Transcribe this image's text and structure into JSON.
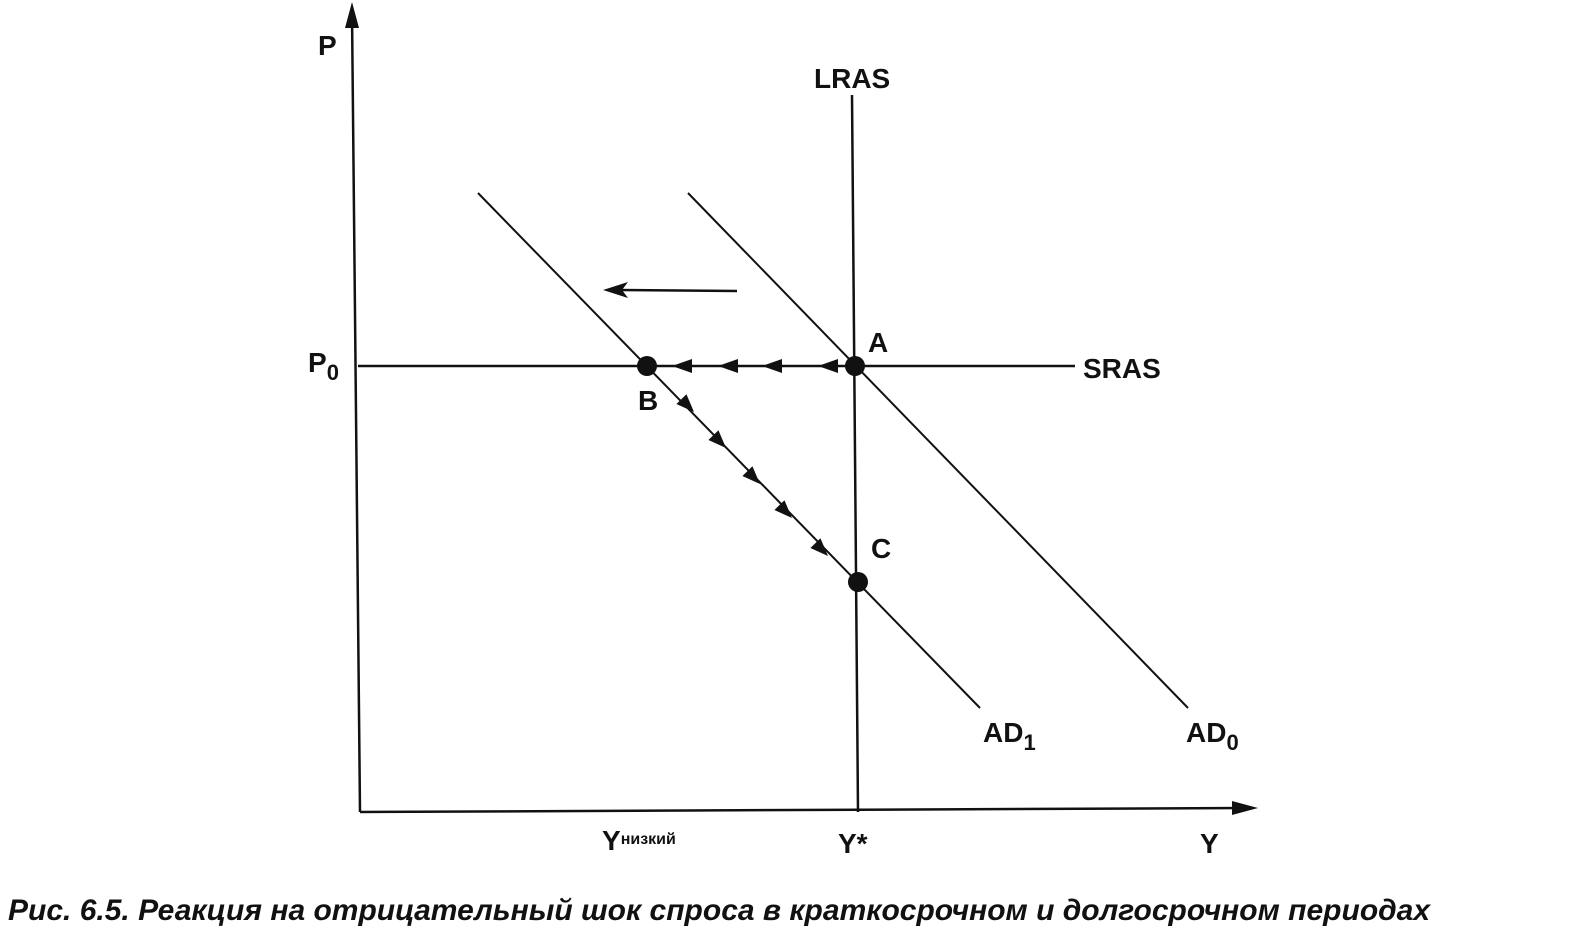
{
  "axes": {
    "y_label": "P",
    "x_label": "Y"
  },
  "curves": {
    "lras": "LRAS",
    "sras": "SRAS",
    "ad0": {
      "text": "AD",
      "sub": "0"
    },
    "ad1": {
      "text": "AD",
      "sub": "1"
    }
  },
  "price_level": {
    "text": "P",
    "sub": "0"
  },
  "points": {
    "a": "A",
    "b": "B",
    "c": "C"
  },
  "output": {
    "low": {
      "text": "Y",
      "sup": "низкий"
    },
    "potential": "Y*"
  },
  "caption": "Рис. 6.5. Реакция на отрицательный шок спроса в краткосрочном и долгосрочном периодах"
}
